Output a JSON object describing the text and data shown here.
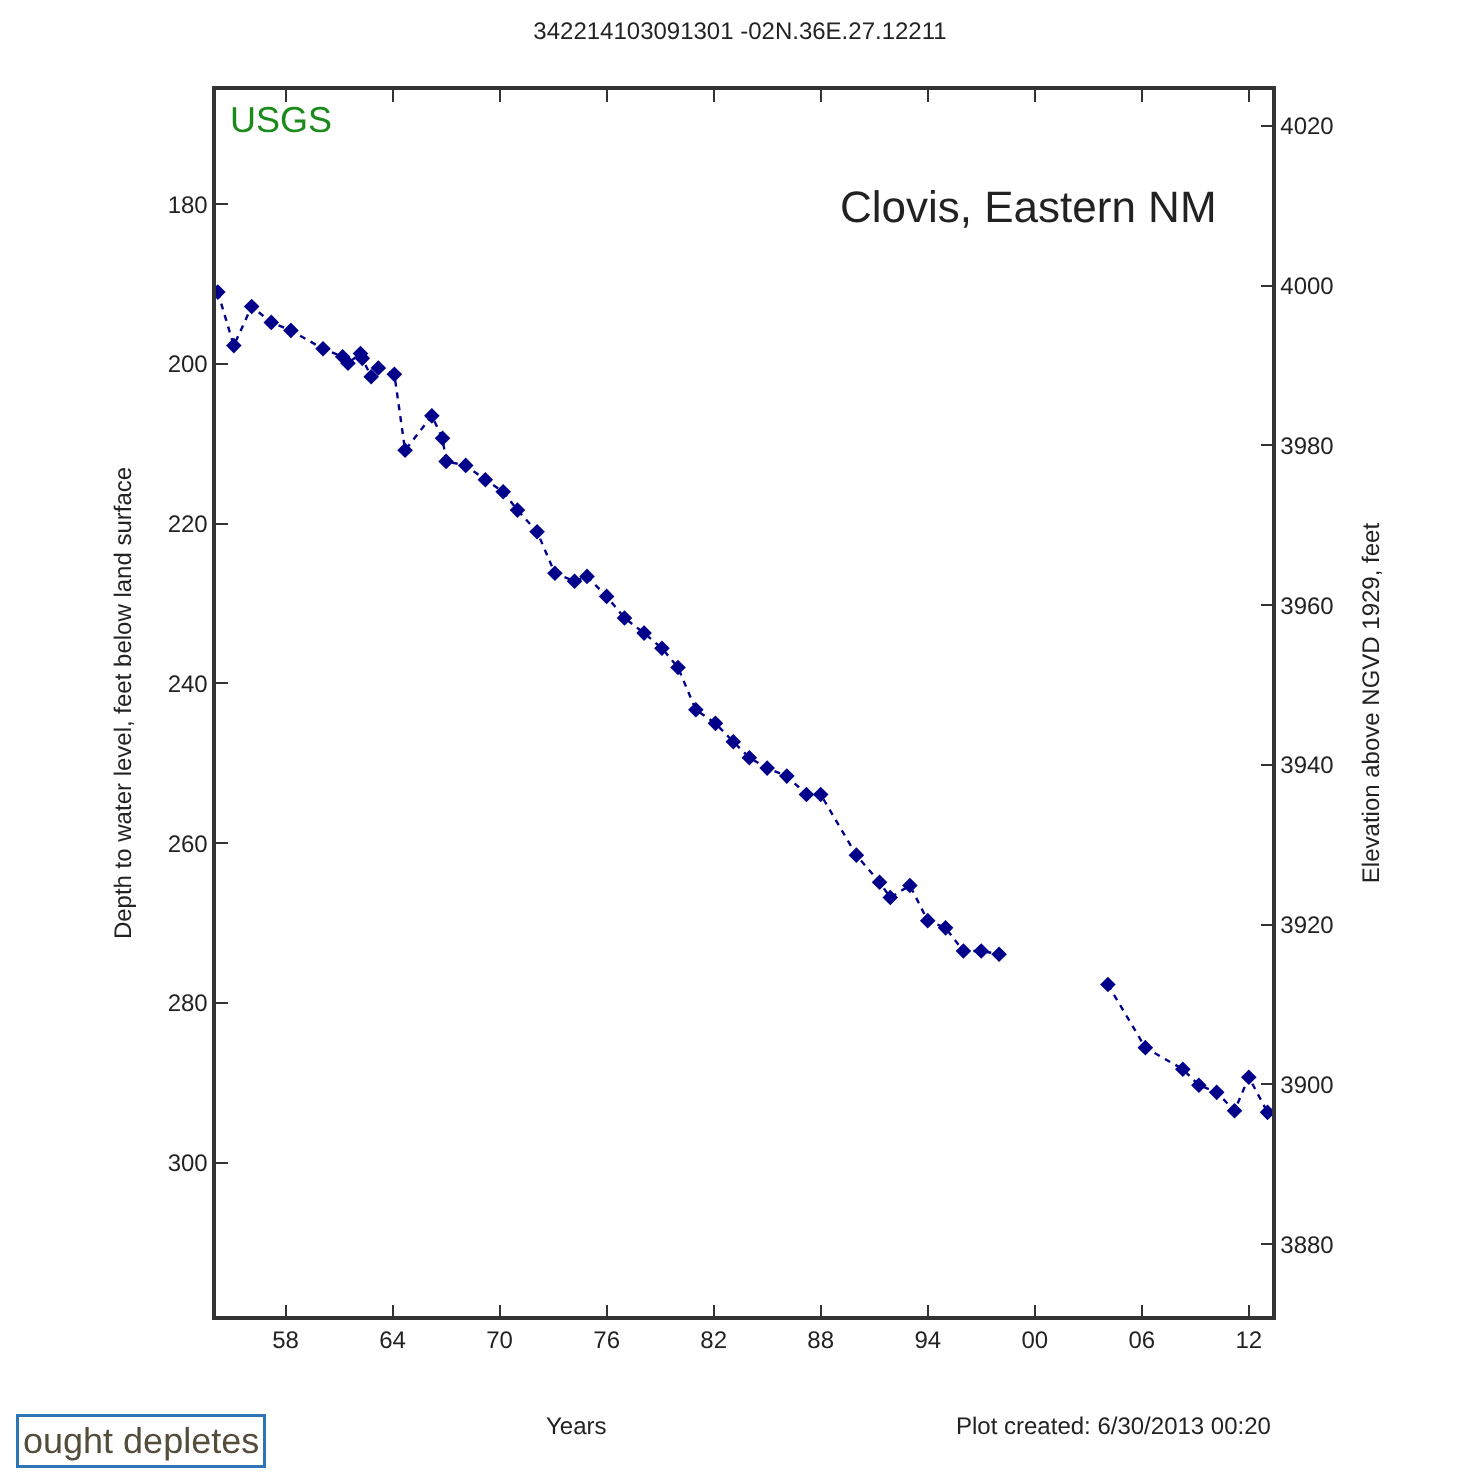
{
  "chart_data": {
    "type": "line",
    "title": "342214103091301 -02N.36E.27.12211",
    "xlabel": "Years",
    "ylabel": "Depth to water level, feet below land surface",
    "y2label": "Elevation above NGVD 1929, feet",
    "annotations": [
      "USGS",
      "Clovis, Eastern NM",
      "Plot created: 6/30/2013 00:20",
      "ought depletes"
    ],
    "x": [
      1954.2,
      1955.1,
      1956.1,
      1957.2,
      1958.3,
      1960.1,
      1961.2,
      1961.5,
      1962.2,
      1962.3,
      1962.8,
      1963.2,
      1964.1,
      1964.7,
      1966.2,
      1966.8,
      1967.0,
      1968.1,
      1969.2,
      1970.2,
      1971.0,
      1972.1,
      1973.1,
      1974.2,
      1974.9,
      1976.0,
      1977.0,
      1978.1,
      1979.1,
      1980.0,
      1981.0,
      1982.1,
      1983.1,
      1984.0,
      1985.0,
      1986.1,
      1987.2,
      1988.0,
      1990.0,
      1991.3,
      1991.9,
      1993.0,
      1994.0,
      1995.0,
      1996.0,
      1997.0,
      1998.0,
      2001.0,
      2004.1,
      2006.2,
      2008.3,
      2009.2,
      2010.2,
      2011.2,
      2012.0,
      2013.05
    ],
    "series": [
      {
        "color": "#00008b",
        "values": [
          191,
          197.7,
          192.8,
          194.8,
          195.8,
          198.1,
          199.1,
          199.9,
          198.7,
          199.3,
          201.6,
          200.5,
          201.3,
          210.8,
          206.5,
          209.3,
          212.2,
          212.7,
          214.5,
          216,
          218.3,
          221,
          226.2,
          227.2,
          226.6,
          229.1,
          231.8,
          233.7,
          235.6,
          238,
          243.3,
          245,
          247.3,
          249.3,
          250.6,
          251.6,
          253.9,
          253.9,
          261.5,
          264.9,
          266.8,
          265.3,
          269.7,
          270.6,
          273.5,
          273.5,
          273.9,
          null,
          277.7,
          285.6,
          288.3,
          290.3,
          291.2,
          293.5,
          289.3,
          293.7
        ]
      }
    ],
    "marker": "diamond",
    "line_style": "dotted",
    "legend": false,
    "xlim": [
      1954.1,
      2013.3
    ],
    "xticks": [
      {
        "value": 1958,
        "label": "58"
      },
      {
        "value": 1964,
        "label": "64"
      },
      {
        "value": 1970,
        "label": "70"
      },
      {
        "value": 1976,
        "label": "76"
      },
      {
        "value": 1982,
        "label": "82"
      },
      {
        "value": 1988,
        "label": "88"
      },
      {
        "value": 1994,
        "label": "94"
      },
      {
        "value": 2000,
        "label": "00"
      },
      {
        "value": 2006,
        "label": "06"
      },
      {
        "value": 2012,
        "label": "12"
      }
    ],
    "ylim": [
      319.2,
      165.7
    ],
    "yticks": [
      180,
      200,
      220,
      240,
      260,
      280,
      300
    ],
    "y2lim": [
      3871,
      4024.5
    ],
    "y2ticks": [
      3880,
      3900,
      3920,
      3940,
      3960,
      3980,
      4000,
      4020
    ]
  }
}
